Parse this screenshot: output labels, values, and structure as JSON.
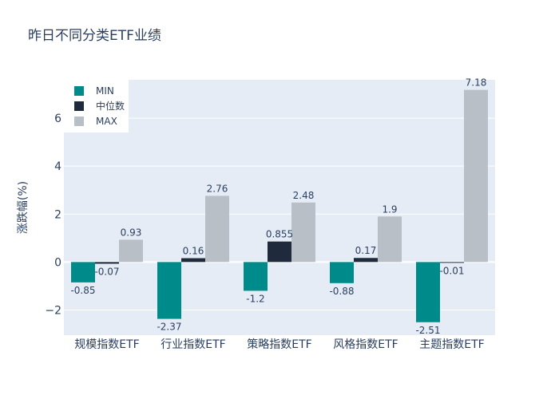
{
  "chart_data": {
    "type": "bar",
    "title": "昨日不同分类ETF业绩",
    "xlabel": "",
    "ylabel": "涨跌幅(%)",
    "categories": [
      "规模指数ETF",
      "行业指数ETF",
      "策略指数ETF",
      "风格指数ETF",
      "主题指数ETF"
    ],
    "series": [
      {
        "name": "MIN",
        "color": "#008b8b",
        "values": [
          -0.85,
          -2.37,
          -1.2,
          -0.88,
          -2.51
        ],
        "labels": [
          "-0.85",
          "-2.37",
          "-1.2",
          "-0.88",
          "-2.51"
        ]
      },
      {
        "name": "中位数",
        "color": "#1f2a3c",
        "values": [
          -0.07,
          0.16,
          0.855,
          0.17,
          -0.01
        ],
        "labels": [
          "-0.07",
          "0.16",
          "0.855",
          "0.17",
          "-0.01"
        ]
      },
      {
        "name": "MAX",
        "color": "#b8bfc7",
        "values": [
          0.93,
          2.76,
          2.48,
          1.9,
          7.18
        ],
        "labels": [
          "0.93",
          "2.76",
          "2.48",
          "1.9",
          "7.18"
        ]
      }
    ],
    "ylim": [
      -3.05,
      7.6
    ],
    "yticks": [
      -2,
      0,
      2,
      4,
      6
    ],
    "ytick_labels": [
      "−2",
      "0",
      "2",
      "4",
      "6"
    ],
    "grid": true,
    "legend_position": "top-left",
    "colors": {
      "plot_bg": "#e5ecf6",
      "grid": "#ffffff",
      "text": "#2a3f5f"
    }
  }
}
